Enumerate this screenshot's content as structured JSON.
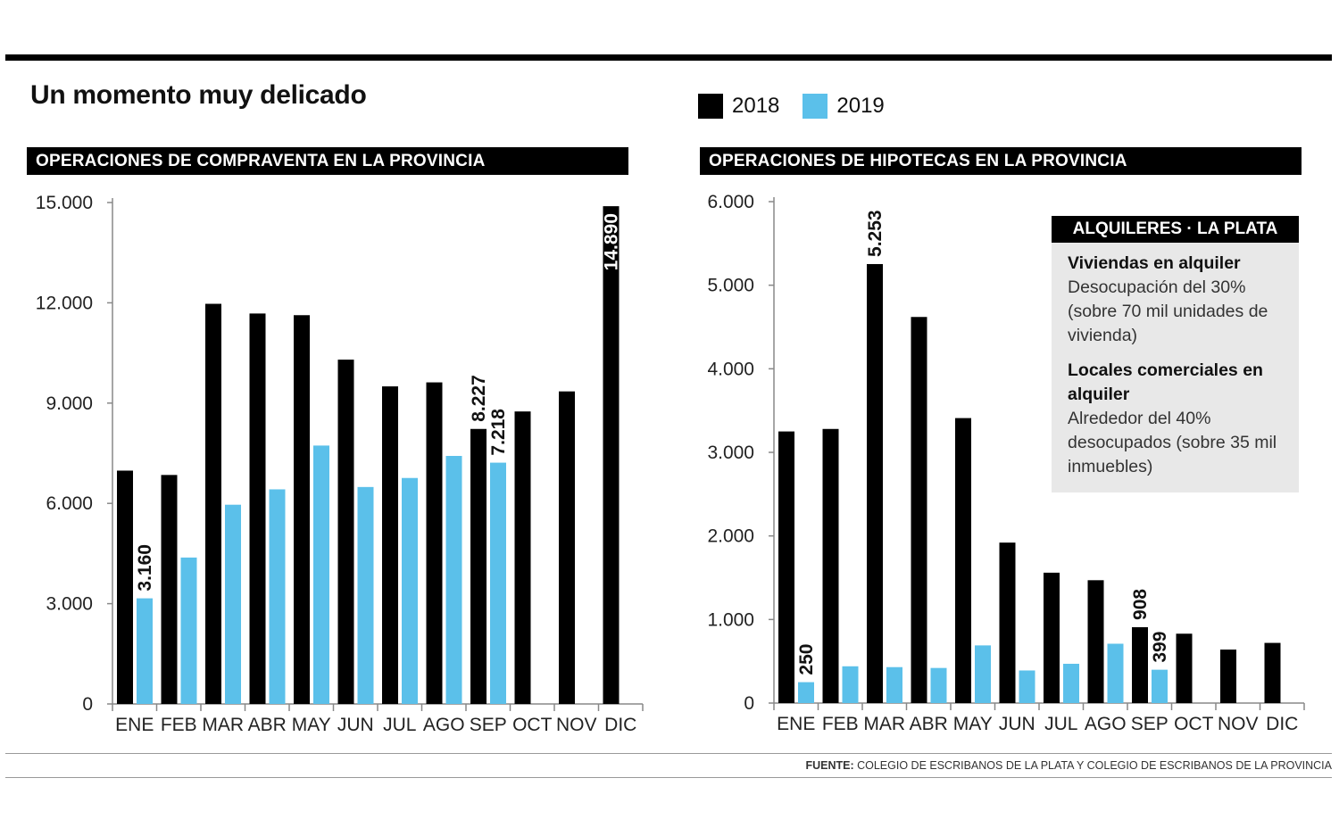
{
  "title": "Un momento muy delicado",
  "legend": [
    {
      "label": "2018",
      "color": "#000000"
    },
    {
      "label": "2019",
      "color": "#5bc0ea"
    }
  ],
  "source": {
    "prefix": "FUENTE:",
    "text": "COLEGIO DE ESCRIBANOS DE LA PLATA Y COLEGIO DE ESCRIBANOS DE LA PROVINCIA"
  },
  "infobox": {
    "title": "ALQUILERES · LA PLATA",
    "sections": [
      {
        "heading": "Viviendas en alquiler",
        "text": "Desocupación del 30% (sobre 70 mil unidades de vivienda)"
      },
      {
        "heading": "Locales comerciales en alquiler",
        "text": "Alrededor del 40% desocupados (sobre 35 mil inmuebles)"
      }
    ]
  },
  "chart_data": [
    {
      "type": "bar",
      "title": "OPERACIONES DE COMPRAVENTA EN LA PROVINCIA",
      "categories": [
        "ENE",
        "FEB",
        "MAR",
        "ABR",
        "MAY",
        "JUN",
        "JUL",
        "AGO",
        "SEP",
        "OCT",
        "NOV",
        "DIC"
      ],
      "ylim": [
        0,
        15000
      ],
      "yticks": [
        0,
        3000,
        6000,
        9000,
        12000,
        15000
      ],
      "ytick_labels": [
        "0",
        "3.000",
        "6.000",
        "9.000",
        "12.000",
        "15.000"
      ],
      "series": [
        {
          "name": "2018",
          "color": "#000000",
          "values": [
            6980,
            6850,
            11970,
            11680,
            11630,
            10300,
            9500,
            9620,
            8227,
            8750,
            9350,
            14890
          ]
        },
        {
          "name": "2019",
          "color": "#5bc0ea",
          "values": [
            3160,
            4380,
            5960,
            6420,
            7730,
            6490,
            6760,
            7420,
            7218,
            null,
            null,
            null
          ]
        }
      ],
      "data_labels": [
        {
          "series": 1,
          "index": 0,
          "text": "3.160"
        },
        {
          "series": 0,
          "index": 8,
          "text": "8.227"
        },
        {
          "series": 1,
          "index": 8,
          "text": "7.218"
        },
        {
          "series": 0,
          "index": 11,
          "text": "14.890",
          "inside": true
        }
      ]
    },
    {
      "type": "bar",
      "title": "OPERACIONES DE HIPOTECAS EN LA PROVINCIA",
      "categories": [
        "ENE",
        "FEB",
        "MAR",
        "ABR",
        "MAY",
        "JUN",
        "JUL",
        "AGO",
        "SEP",
        "OCT",
        "NOV",
        "DIC"
      ],
      "ylim": [
        0,
        6000
      ],
      "yticks": [
        0,
        1000,
        2000,
        3000,
        4000,
        5000,
        6000
      ],
      "ytick_labels": [
        "0",
        "1.000",
        "2.000",
        "3.000",
        "4.000",
        "5.000",
        "6.000"
      ],
      "series": [
        {
          "name": "2018",
          "color": "#000000",
          "values": [
            3250,
            3280,
            5253,
            4620,
            3410,
            1920,
            1560,
            1470,
            908,
            830,
            640,
            720
          ]
        },
        {
          "name": "2019",
          "color": "#5bc0ea",
          "values": [
            250,
            440,
            430,
            420,
            690,
            390,
            470,
            710,
            399,
            null,
            null,
            null
          ]
        }
      ],
      "data_labels": [
        {
          "series": 1,
          "index": 0,
          "text": "250"
        },
        {
          "series": 0,
          "index": 2,
          "text": "5.253"
        },
        {
          "series": 0,
          "index": 8,
          "text": "908"
        },
        {
          "series": 1,
          "index": 8,
          "text": "399"
        }
      ]
    }
  ]
}
